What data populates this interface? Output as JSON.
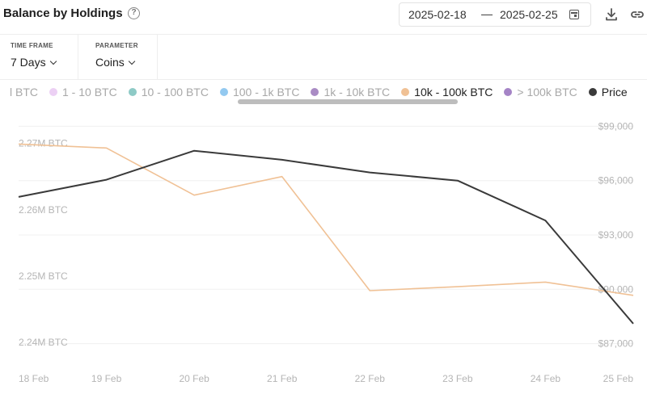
{
  "header": {
    "title": "Balance by Holdings",
    "date_from": "2025-02-18",
    "date_separator": "—",
    "date_to": "2025-02-25"
  },
  "controls": {
    "time_frame": {
      "label": "TIME FRAME",
      "value": "7 Days"
    },
    "parameter": {
      "label": "PARAMETER",
      "value": "Coins"
    }
  },
  "legend": [
    {
      "label": "l BTC",
      "color": "#cccccc",
      "active": false,
      "show_dot": false
    },
    {
      "label": "1 - 10 BTC",
      "color": "#ecd0f4",
      "active": false,
      "show_dot": true
    },
    {
      "label": "10 - 100 BTC",
      "color": "#8ecac6",
      "active": false,
      "show_dot": true
    },
    {
      "label": "100 - 1k BTC",
      "color": "#93c9f0",
      "active": false,
      "show_dot": true
    },
    {
      "label": "1k - 10k BTC",
      "color": "#a98bc4",
      "active": false,
      "show_dot": true
    },
    {
      "label": "10k - 100k BTC",
      "color": "#f0c195",
      "active": true,
      "show_dot": true
    },
    {
      "label": "> 100k BTC",
      "color": "#a584c6",
      "active": false,
      "show_dot": true
    },
    {
      "label": "Price",
      "color": "#3a3a3a",
      "active": true,
      "show_dot": true
    }
  ],
  "chart_data": {
    "type": "line",
    "categories": [
      "18 Feb",
      "19 Feb",
      "20 Feb",
      "21 Feb",
      "22 Feb",
      "23 Feb",
      "24 Feb",
      "25 Feb"
    ],
    "left_axis": {
      "ylim": [
        2.2371,
        2.2753
      ],
      "ticks": [
        2.24,
        2.25,
        2.26,
        2.27
      ],
      "tick_labels": [
        "2.24M BTC",
        "2.25M BTC",
        "2.26M BTC",
        "2.27M BTC"
      ]
    },
    "right_axis": {
      "ylim": [
        86000,
        100000
      ],
      "ticks": [
        87000,
        90000,
        93000,
        96000,
        99000
      ],
      "tick_labels": [
        "$87,000",
        "$90,000",
        "$93,000",
        "$96,000",
        "$99,000"
      ]
    },
    "series": [
      {
        "name": "10k - 100k BTC",
        "axis": "left",
        "color": "#f0c195",
        "values": [
          2.2699,
          2.2693,
          2.2622,
          2.265,
          2.2478,
          2.2484,
          2.2491,
          2.2471
        ]
      },
      {
        "name": "Price",
        "axis": "right",
        "color": "#3a3a3a",
        "values": [
          95100,
          96050,
          97650,
          97150,
          96450,
          96000,
          93800,
          88100
        ]
      }
    ],
    "grid": true,
    "legend_position": "top"
  }
}
